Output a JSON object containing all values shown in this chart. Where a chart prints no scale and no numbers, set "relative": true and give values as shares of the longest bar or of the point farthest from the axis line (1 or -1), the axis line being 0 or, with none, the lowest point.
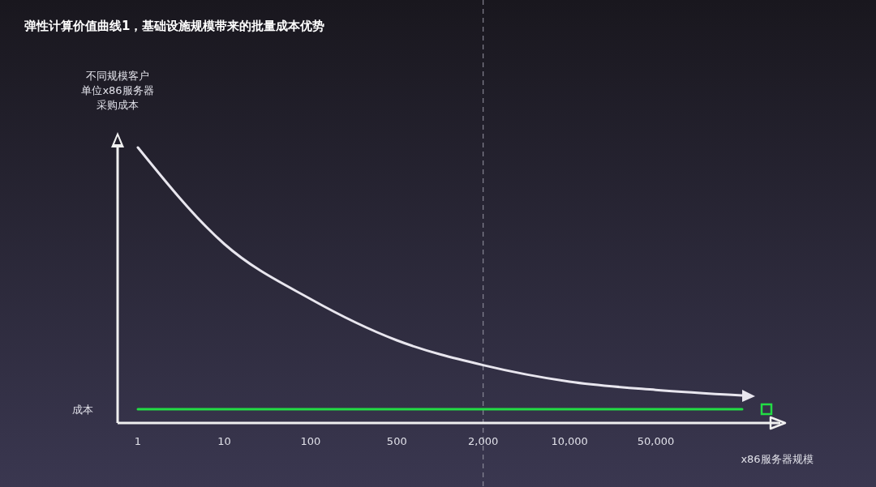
{
  "chart_data": {
    "type": "line",
    "relative": true,
    "title": "弹性计算价值曲线1，基础设施规模带来的批量成本优势",
    "ylabel": "不同规模客户单位x86服务器采购成本",
    "xlabel": "x86服务器规模",
    "categories": [
      "1",
      "10",
      "100",
      "500",
      "2,000",
      "10,000",
      "50,000",
      null
    ],
    "series": [
      {
        "color": "#e8e6ee",
        "values": [
          1.0,
          0.65,
          0.45,
          0.3,
          0.21,
          0.15,
          0.12,
          0.1
        ]
      },
      {
        "name": "成本",
        "color": "#22dd44",
        "values": [
          0.05,
          0.05,
          0.05,
          0.05,
          0.05,
          0.05,
          0.05,
          0.05
        ]
      }
    ],
    "ref_lines": [
      {
        "axis": "x",
        "value": "2,000",
        "color": "#9a98a6",
        "line_style": "dashed"
      }
    ],
    "marker": "none",
    "line_style": "solid"
  }
}
